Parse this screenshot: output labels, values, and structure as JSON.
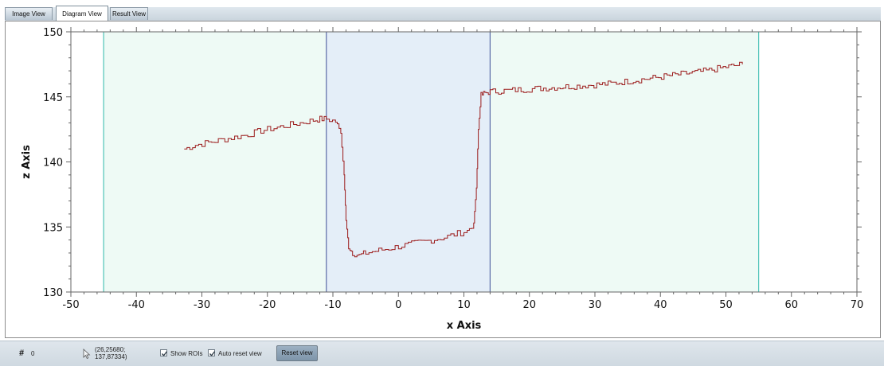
{
  "tabs": [
    {
      "label": "Image View",
      "active": false
    },
    {
      "label": "Diagram View",
      "active": true
    },
    {
      "label": "Result View",
      "active": false
    }
  ],
  "statusbar": {
    "count_value": "0",
    "coordinates": "(26,25680;\n137,87334)",
    "show_rois_label": "Show ROIs",
    "show_rois_checked": true,
    "auto_reset_label": "Auto reset view",
    "auto_reset_checked": true,
    "reset_button_label": "Reset view"
  },
  "chart_data": {
    "type": "line",
    "xlabel": "x Axis",
    "ylabel": "z Axis",
    "xlim": [
      -50,
      70
    ],
    "ylim": [
      130,
      150
    ],
    "x_ticks": [
      -50,
      -40,
      -30,
      -20,
      -10,
      0,
      10,
      20,
      30,
      40,
      50,
      60,
      70
    ],
    "y_ticks": [
      130,
      135,
      140,
      145,
      150
    ],
    "grid": false,
    "line_color": "#9b1b1b",
    "rois": [
      {
        "x_start": -45,
        "x_end": 55,
        "fill": "#eefaf5",
        "border": "#4fc4b8"
      },
      {
        "x_start": -11,
        "x_end": 14,
        "fill": "#e4eef8",
        "border": "#5a6aa6"
      }
    ],
    "series": [
      {
        "x": [
          -32.7,
          -31,
          -29,
          -27,
          -25,
          -23,
          -21,
          -19,
          -17,
          -15,
          -13,
          -12,
          -11,
          -9.6,
          -8.8,
          -8.3,
          -8,
          -7.6,
          -7,
          -6,
          -5,
          -3,
          -1,
          1,
          3,
          5,
          7,
          9,
          10.5,
          11.5,
          11.9,
          12.2,
          12.6,
          13.2,
          14,
          17,
          20,
          23,
          26,
          29,
          32,
          35,
          38,
          41,
          44,
          47,
          50,
          52.5
        ],
        "y": [
          141.0,
          141.3,
          141.5,
          141.7,
          141.9,
          142.1,
          142.4,
          142.6,
          142.8,
          143.0,
          143.2,
          143.3,
          143.3,
          143.1,
          142.2,
          139.0,
          135.5,
          133.5,
          133.0,
          132.8,
          133.0,
          133.2,
          133.4,
          133.6,
          133.8,
          134.0,
          134.2,
          134.5,
          134.7,
          135.3,
          138.0,
          142.5,
          145.1,
          145.3,
          145.4,
          145.5,
          145.6,
          145.7,
          145.8,
          145.9,
          146.0,
          146.2,
          146.4,
          146.6,
          146.8,
          147.0,
          147.3,
          147.5
        ]
      }
    ]
  }
}
